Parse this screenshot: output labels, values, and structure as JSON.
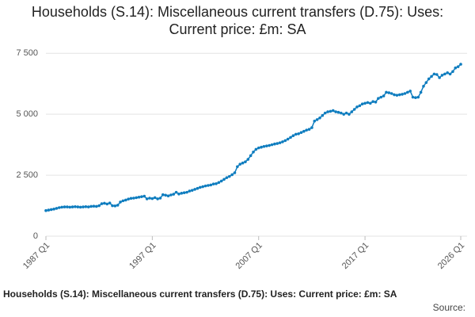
{
  "chart_data": {
    "type": "line",
    "title": "Households (S.14): Miscellaneous current transfers (D.75): Uses: Current price: £m: SA",
    "footer": "Households (S.14): Miscellaneous current transfers (D.75): Uses: Current price: £m: SA",
    "source": "Source:",
    "categories": [
      "1987 Q1",
      null,
      null,
      null,
      null,
      null,
      null,
      null,
      null,
      null,
      null,
      null,
      null,
      null,
      null,
      null,
      null,
      null,
      null,
      null,
      null,
      null,
      null,
      null,
      null,
      null,
      null,
      null,
      null,
      null,
      null,
      null,
      null,
      null,
      null,
      null,
      null,
      null,
      null,
      null,
      "1997 Q1",
      null,
      null,
      null,
      null,
      null,
      null,
      null,
      null,
      null,
      null,
      null,
      null,
      null,
      null,
      null,
      null,
      null,
      null,
      null,
      null,
      null,
      null,
      null,
      null,
      null,
      null,
      null,
      null,
      null,
      null,
      null,
      null,
      null,
      null,
      null,
      null,
      null,
      null,
      null,
      "2007 Q1",
      null,
      null,
      null,
      null,
      null,
      null,
      null,
      null,
      null,
      null,
      null,
      null,
      null,
      null,
      null,
      null,
      null,
      null,
      null,
      null,
      null,
      null,
      null,
      null,
      null,
      null,
      null,
      null,
      null,
      null,
      null,
      null,
      null,
      null,
      null,
      null,
      null,
      null,
      null,
      "2017 Q1",
      null,
      null,
      null,
      null,
      null,
      null,
      null,
      null,
      null,
      null,
      null,
      null,
      null,
      null,
      null,
      null,
      null,
      null,
      null,
      null,
      null,
      null,
      null,
      null,
      null,
      null,
      null,
      null,
      null,
      null,
      null,
      null,
      null,
      null,
      null,
      "2026 Q1"
    ],
    "values": [
      1050,
      1070,
      1090,
      1110,
      1140,
      1170,
      1190,
      1200,
      1200,
      1190,
      1200,
      1210,
      1200,
      1190,
      1200,
      1210,
      1200,
      1220,
      1230,
      1220,
      1250,
      1330,
      1350,
      1320,
      1360,
      1250,
      1240,
      1270,
      1400,
      1450,
      1480,
      1520,
      1550,
      1560,
      1580,
      1600,
      1620,
      1640,
      1530,
      1560,
      1540,
      1580,
      1530,
      1560,
      1700,
      1680,
      1650,
      1690,
      1720,
      1800,
      1730,
      1760,
      1780,
      1800,
      1850,
      1880,
      1920,
      1960,
      2000,
      2030,
      2060,
      2080,
      2100,
      2140,
      2150,
      2200,
      2260,
      2330,
      2400,
      2450,
      2520,
      2600,
      2850,
      2950,
      3000,
      3050,
      3150,
      3300,
      3450,
      3560,
      3620,
      3650,
      3680,
      3700,
      3720,
      3750,
      3780,
      3800,
      3830,
      3870,
      3920,
      3980,
      4050,
      4120,
      4180,
      4200,
      4250,
      4300,
      4350,
      4380,
      4450,
      4720,
      4780,
      4850,
      4950,
      5050,
      5100,
      5120,
      5150,
      5100,
      5080,
      5050,
      5000,
      5050,
      5000,
      5100,
      5200,
      5300,
      5350,
      5420,
      5450,
      5480,
      5450,
      5520,
      5500,
      5650,
      5700,
      5750,
      5900,
      5880,
      5850,
      5800,
      5780,
      5800,
      5820,
      5850,
      5900,
      5950,
      5700,
      5680,
      5700,
      5900,
      6150,
      6300,
      6450,
      6550,
      6650,
      6630,
      6500,
      6600,
      6650,
      6700,
      6650,
      6750,
      6900,
      6950,
      7050
    ],
    "color": "#0f7dbf",
    "ylim": [
      0,
      7800
    ],
    "yticks": [
      0,
      {
        "value": 2500,
        "label": "2 500"
      },
      {
        "value": 5000,
        "label": "5 000"
      },
      {
        "value": 7500,
        "label": "7 500"
      }
    ],
    "grid": true
  }
}
